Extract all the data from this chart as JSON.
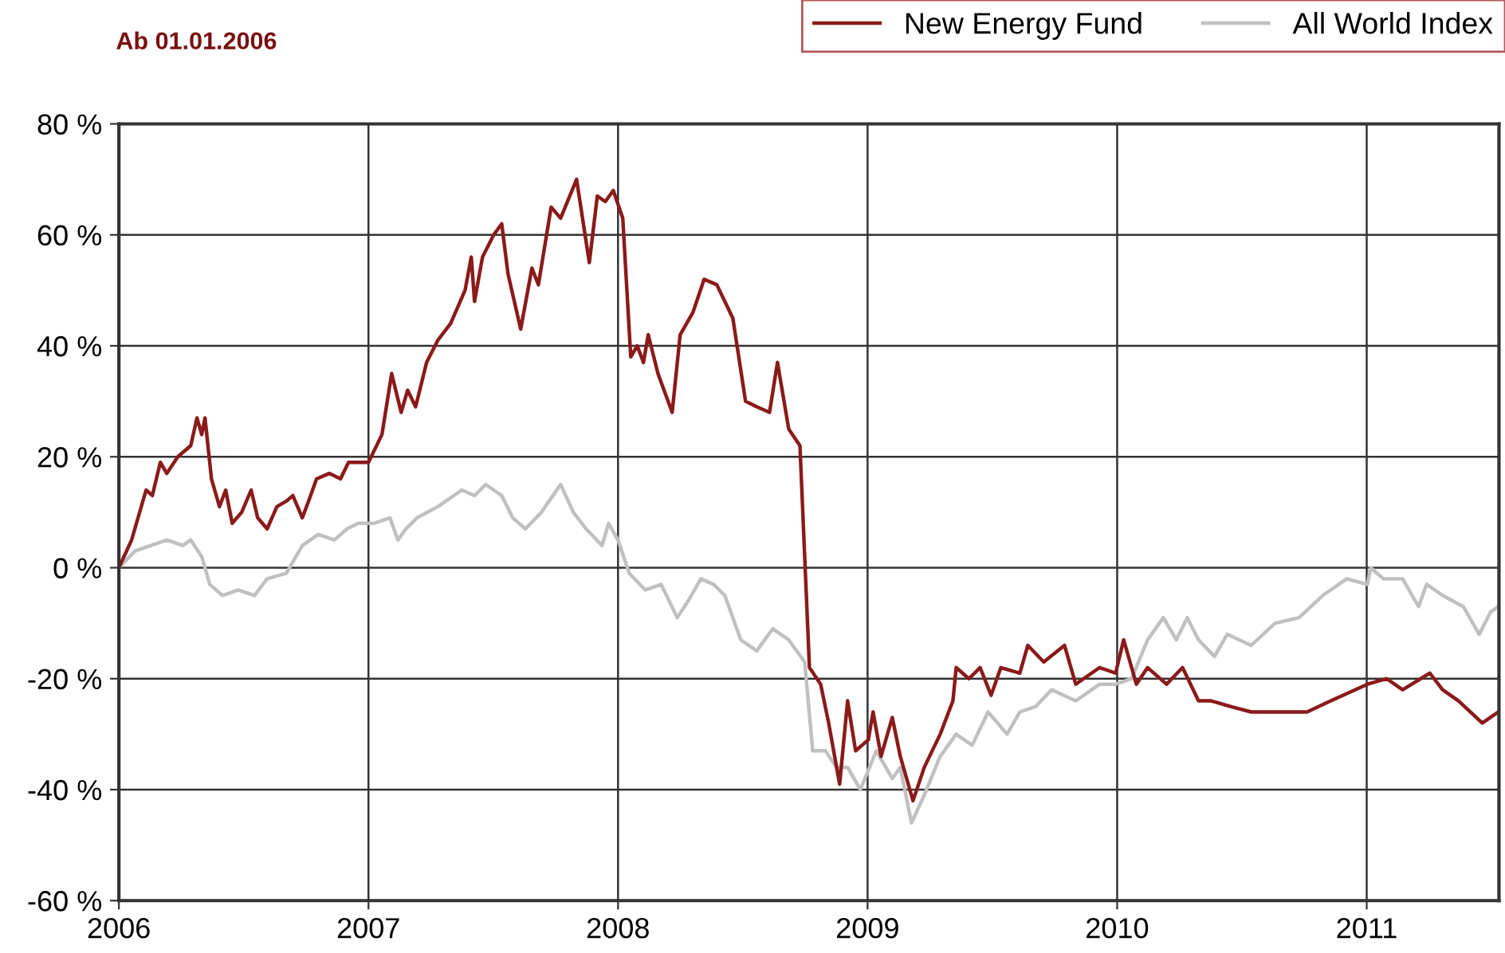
{
  "chart_data": {
    "type": "line",
    "title": "Ab 01.01.2006",
    "xlim": [
      2006,
      2011.53
    ],
    "xticks": [
      2006,
      2007,
      2008,
      2009,
      2010,
      2011
    ],
    "ylim": [
      -60,
      80
    ],
    "yticks": [
      {
        "value": -60,
        "label": "-60 %"
      },
      {
        "value": -40,
        "label": "-40 %"
      },
      {
        "value": -20,
        "label": "-20 %"
      },
      {
        "value": 0,
        "label": "0 %"
      },
      {
        "value": 20,
        "label": "20 %"
      },
      {
        "value": 40,
        "label": "40 %"
      },
      {
        "value": 60,
        "label": "60 %"
      },
      {
        "value": 80,
        "label": "80 %"
      }
    ],
    "grid": true,
    "legend": "top right",
    "marker": "none",
    "line_style": "solid",
    "series": [
      {
        "name": "All World Index",
        "color": "#c0c0c0",
        "x": [
          2006.0,
          2006.064,
          2006.128,
          2006.192,
          2006.256,
          2006.288,
          2006.332,
          2006.364,
          2006.415,
          2006.479,
          2006.543,
          2006.594,
          2006.671,
          2006.735,
          2006.799,
          2006.863,
          2006.914,
          2006.959,
          2007.022,
          2007.086,
          2007.118,
          2007.15,
          2007.195,
          2007.278,
          2007.374,
          2007.425,
          2007.47,
          2007.534,
          2007.578,
          2007.629,
          2007.693,
          2007.77,
          2007.821,
          2007.872,
          2007.936,
          2007.962,
          2008.0,
          2008.045,
          2008.109,
          2008.173,
          2008.237,
          2008.281,
          2008.332,
          2008.383,
          2008.428,
          2008.492,
          2008.556,
          2008.62,
          2008.684,
          2008.748,
          2008.78,
          2008.831,
          2008.876,
          2008.92,
          2008.971,
          2009.035,
          2009.099,
          2009.131,
          2009.176,
          2009.227,
          2009.291,
          2009.355,
          2009.419,
          2009.483,
          2009.559,
          2009.61,
          2009.674,
          2009.738,
          2009.834,
          2009.93,
          2009.994,
          2010.058,
          2010.122,
          2010.185,
          2010.237,
          2010.281,
          2010.326,
          2010.39,
          2010.441,
          2010.537,
          2010.633,
          2010.729,
          2010.824,
          2010.92,
          2011.003,
          2011.016,
          2011.067,
          2011.144,
          2011.208,
          2011.24,
          2011.304,
          2011.387,
          2011.451,
          2011.496,
          2011.527
        ],
        "values": [
          0,
          3,
          4,
          5,
          4,
          5,
          2,
          -3,
          -5,
          -4,
          -5,
          -2,
          -1,
          4,
          6,
          5,
          7,
          8,
          8,
          9,
          5,
          7,
          9,
          11,
          14,
          13,
          15,
          13,
          9,
          7,
          10,
          15,
          10,
          7,
          4,
          8,
          5,
          -1,
          -4,
          -3,
          -9,
          -6,
          -2,
          -3,
          -5,
          -13,
          -15,
          -11,
          -13,
          -17,
          -33,
          -33,
          -36,
          -36,
          -40,
          -33,
          -38,
          -36,
          -46,
          -41,
          -34,
          -30,
          -32,
          -26,
          -30,
          -26,
          -25,
          -22,
          -24,
          -21,
          -21,
          -20,
          -13,
          -9,
          -13,
          -9,
          -13,
          -16,
          -12,
          -14,
          -10,
          -9,
          -5,
          -2,
          -3,
          0,
          -2,
          -2,
          -7,
          -3,
          -5,
          -7,
          -12,
          -8,
          -7
        ]
      },
      {
        "name": "New Energy Fund",
        "color": "#8b1a1a",
        "x": [
          2006.0,
          2006.051,
          2006.109,
          2006.134,
          2006.166,
          2006.192,
          2006.236,
          2006.288,
          2006.313,
          2006.332,
          2006.345,
          2006.371,
          2006.403,
          2006.428,
          2006.454,
          2006.492,
          2006.53,
          2006.556,
          2006.594,
          2006.633,
          2006.671,
          2006.697,
          2006.735,
          2006.76,
          2006.792,
          2006.843,
          2006.888,
          2006.92,
          2007.0,
          2007.054,
          2007.093,
          2007.131,
          2007.157,
          2007.189,
          2007.233,
          2007.278,
          2007.329,
          2007.387,
          2007.412,
          2007.425,
          2007.457,
          2007.502,
          2007.534,
          2007.559,
          2007.61,
          2007.655,
          2007.681,
          2007.732,
          2007.77,
          2007.834,
          2007.885,
          2007.917,
          2007.949,
          2007.981,
          2008.019,
          2008.051,
          2008.077,
          2008.102,
          2008.121,
          2008.16,
          2008.217,
          2008.249,
          2008.3,
          2008.345,
          2008.396,
          2008.46,
          2008.511,
          2008.556,
          2008.607,
          2008.639,
          2008.684,
          2008.729,
          2008.767,
          2008.812,
          2008.844,
          2008.888,
          2008.92,
          2008.952,
          2009.003,
          2009.022,
          2009.054,
          2009.099,
          2009.131,
          2009.182,
          2009.227,
          2009.291,
          2009.342,
          2009.355,
          2009.406,
          2009.451,
          2009.495,
          2009.534,
          2009.61,
          2009.642,
          2009.706,
          2009.789,
          2009.834,
          2009.93,
          2009.994,
          2010.026,
          2010.077,
          2010.122,
          2010.198,
          2010.262,
          2010.326,
          2010.377,
          2010.454,
          2010.537,
          2010.633,
          2010.761,
          2010.856,
          2011.003,
          2011.08,
          2011.144,
          2011.253,
          2011.304,
          2011.368,
          2011.463,
          2011.527
        ],
        "values": [
          0,
          5,
          14,
          13,
          19,
          17,
          20,
          22,
          27,
          24,
          27,
          16,
          11,
          14,
          8,
          10,
          14,
          9,
          7,
          11,
          12,
          13,
          9,
          12,
          16,
          17,
          16,
          19,
          19,
          24,
          35,
          28,
          32,
          29,
          37,
          41,
          44,
          50,
          56,
          48,
          56,
          60,
          62,
          53,
          43,
          54,
          51,
          65,
          63,
          70,
          55,
          67,
          66,
          68,
          63,
          38,
          40,
          37,
          42,
          35,
          28,
          42,
          46,
          52,
          51,
          45,
          30,
          29,
          28,
          37,
          25,
          22,
          -18,
          -21,
          -28,
          -39,
          -24,
          -33,
          -31,
          -26,
          -34,
          -27,
          -34,
          -42,
          -36,
          -30,
          -24,
          -18,
          -20,
          -18,
          -23,
          -18,
          -19,
          -14,
          -17,
          -14,
          -21,
          -18,
          -19,
          -13,
          -21,
          -18,
          -21,
          -18,
          -24,
          -24,
          -25,
          -26,
          -26,
          -26,
          -24,
          -21,
          -20,
          -22,
          -19,
          -22,
          -24,
          -28,
          -26
        ]
      }
    ]
  }
}
